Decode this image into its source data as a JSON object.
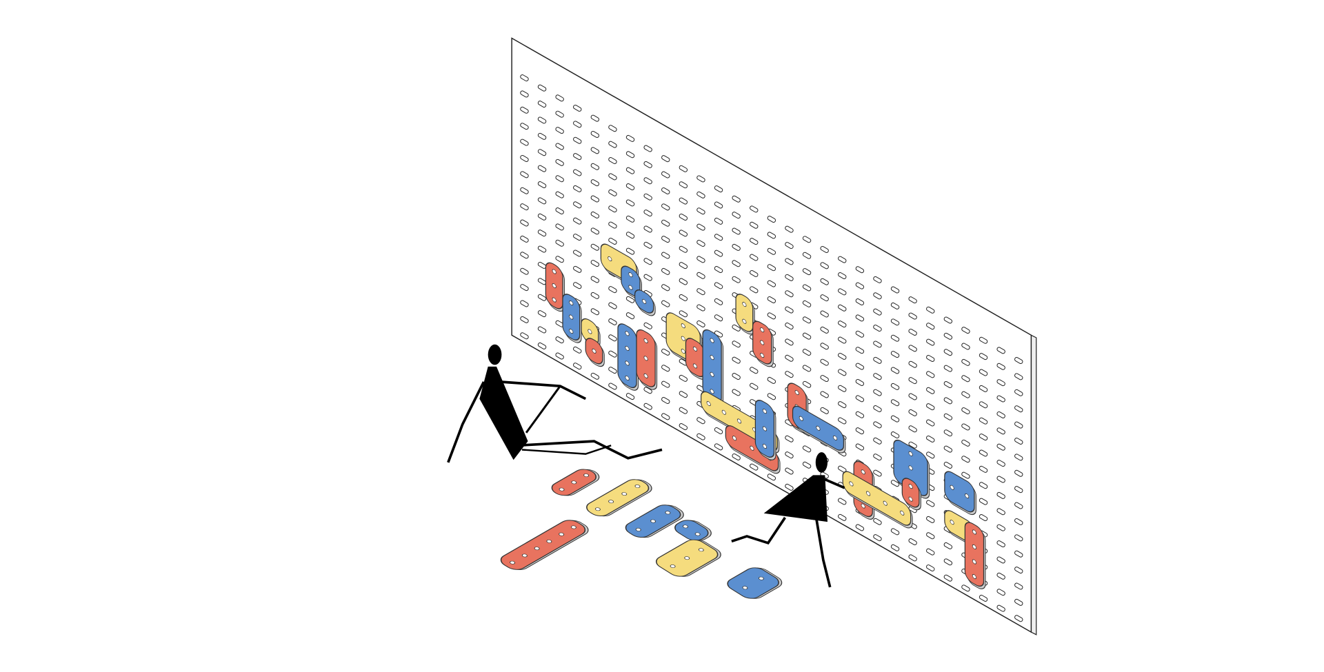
{
  "colors": {
    "background": "#ffffff",
    "board": "#ffffff",
    "board_outline": "#222222",
    "red": "#e8735f",
    "yellow": "#f5dc7e",
    "blue": "#5b8fd0",
    "silhouette": "#000000"
  },
  "scene": {
    "subject": "pegboard-wall-with-colored-pieces",
    "figures": [
      "seated-person-silhouette",
      "child-silhouette"
    ]
  }
}
